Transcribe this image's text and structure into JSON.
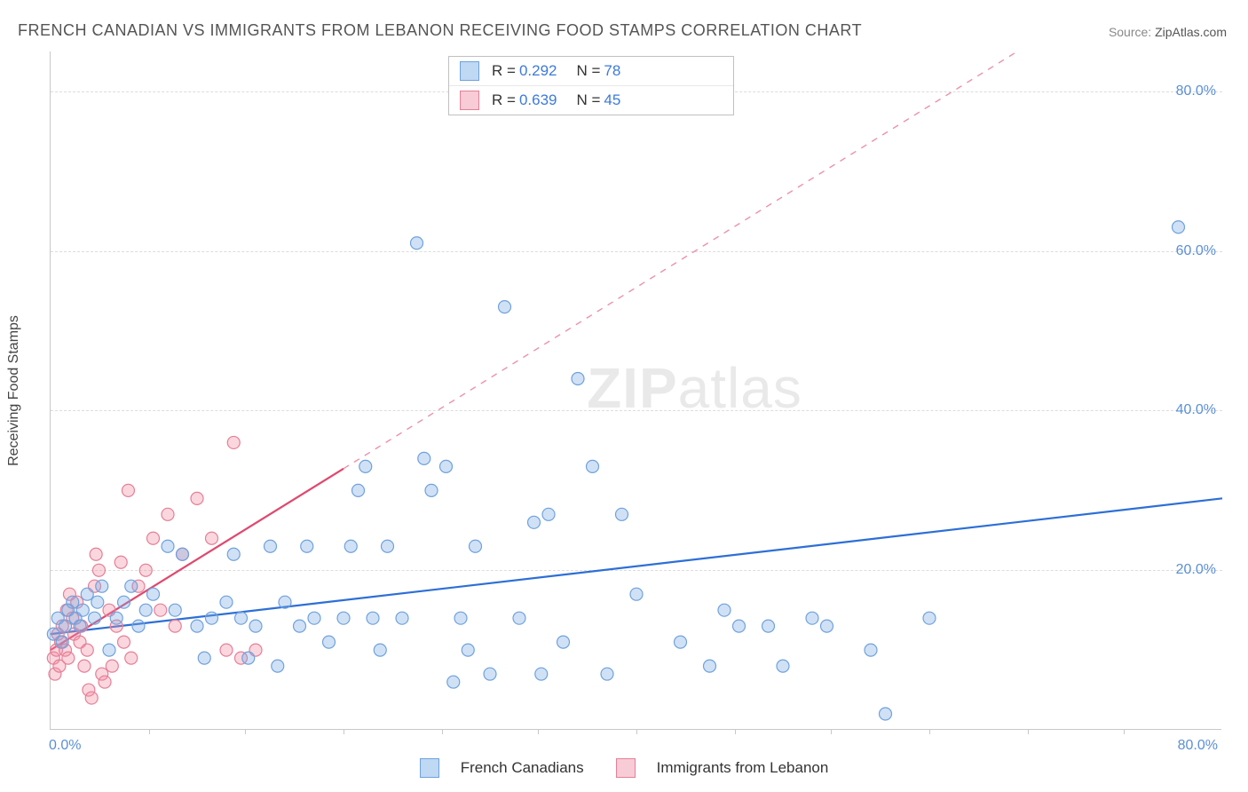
{
  "title": "FRENCH CANADIAN VS IMMIGRANTS FROM LEBANON RECEIVING FOOD STAMPS CORRELATION CHART",
  "source_label": "Source: ",
  "source_value": "ZipAtlas.com",
  "y_axis_title": "Receiving Food Stamps",
  "chart": {
    "type": "scatter",
    "xlim": [
      0,
      80
    ],
    "ylim": [
      0,
      85
    ],
    "x_tick_labels": {
      "origin": "0.0%",
      "max": "80.0%"
    },
    "y_ticks": [
      20,
      40,
      60,
      80
    ],
    "y_tick_labels": [
      "20.0%",
      "40.0%",
      "60.0%",
      "80.0%"
    ],
    "minor_x_ticks": [
      6.7,
      13.3,
      20,
      26.7,
      33.3,
      40,
      46.7,
      53.3,
      60,
      66.7,
      73.3
    ],
    "grid_color": "#dcdcdc",
    "background_color": "#ffffff",
    "marker_radius": 7,
    "marker_stroke_width": 1.2,
    "series": [
      {
        "name": "French Canadians",
        "fill": "rgba(120,170,230,0.35)",
        "stroke": "#6fa2dd",
        "R": "0.292",
        "N": "78",
        "trend": {
          "x1": 0,
          "y1": 12,
          "x2": 80,
          "y2": 29,
          "solid_end_x": 80,
          "color": "#2d6fd6",
          "width": 2.2
        },
        "points": [
          [
            0.2,
            12
          ],
          [
            0.5,
            14
          ],
          [
            0.8,
            11
          ],
          [
            1.0,
            13
          ],
          [
            1.2,
            15
          ],
          [
            1.5,
            16
          ],
          [
            1.7,
            14
          ],
          [
            2.0,
            13
          ],
          [
            2.2,
            15
          ],
          [
            2.5,
            17
          ],
          [
            3.0,
            14
          ],
          [
            3.2,
            16
          ],
          [
            3.5,
            18
          ],
          [
            4.0,
            10
          ],
          [
            4.5,
            14
          ],
          [
            5.0,
            16
          ],
          [
            5.5,
            18
          ],
          [
            6.0,
            13
          ],
          [
            6.5,
            15
          ],
          [
            7.0,
            17
          ],
          [
            8.0,
            23
          ],
          [
            8.5,
            15
          ],
          [
            9.0,
            22
          ],
          [
            10.0,
            13
          ],
          [
            10.5,
            9
          ],
          [
            11.0,
            14
          ],
          [
            12.0,
            16
          ],
          [
            12.5,
            22
          ],
          [
            13.0,
            14
          ],
          [
            13.5,
            9
          ],
          [
            14.0,
            13
          ],
          [
            15.0,
            23
          ],
          [
            15.5,
            8
          ],
          [
            16.0,
            16
          ],
          [
            17.0,
            13
          ],
          [
            17.5,
            23
          ],
          [
            18.0,
            14
          ],
          [
            19.0,
            11
          ],
          [
            20.0,
            14
          ],
          [
            20.5,
            23
          ],
          [
            21.0,
            30
          ],
          [
            21.5,
            33
          ],
          [
            22.0,
            14
          ],
          [
            22.5,
            10
          ],
          [
            23.0,
            23
          ],
          [
            24.0,
            14
          ],
          [
            25.0,
            61
          ],
          [
            25.5,
            34
          ],
          [
            26.0,
            30
          ],
          [
            27.0,
            33
          ],
          [
            27.5,
            6
          ],
          [
            28.0,
            14
          ],
          [
            28.5,
            10
          ],
          [
            29.0,
            23
          ],
          [
            30.0,
            7
          ],
          [
            31.0,
            53
          ],
          [
            32.0,
            14
          ],
          [
            33.0,
            26
          ],
          [
            33.5,
            7
          ],
          [
            34.0,
            27
          ],
          [
            35.0,
            11
          ],
          [
            36.0,
            44
          ],
          [
            37.0,
            33
          ],
          [
            38.0,
            7
          ],
          [
            39.0,
            27
          ],
          [
            40.0,
            17
          ],
          [
            43.0,
            11
          ],
          [
            45.0,
            8
          ],
          [
            46.0,
            15
          ],
          [
            47.0,
            13
          ],
          [
            49.0,
            13
          ],
          [
            50.0,
            8
          ],
          [
            52.0,
            14
          ],
          [
            53.0,
            13
          ],
          [
            56.0,
            10
          ],
          [
            57.0,
            2
          ],
          [
            60.0,
            14
          ],
          [
            77.0,
            63
          ]
        ]
      },
      {
        "name": "Immigrants from Lebanon",
        "fill": "rgba(240,140,160,0.35)",
        "stroke": "#e77f97",
        "R": "0.639",
        "N": "45",
        "trend": {
          "x1": 0,
          "y1": 10,
          "x2": 66,
          "y2": 85,
          "solid_end_x": 20,
          "color": "#e0486f",
          "width": 2.2
        },
        "points": [
          [
            0.2,
            9
          ],
          [
            0.3,
            7
          ],
          [
            0.4,
            10
          ],
          [
            0.5,
            12
          ],
          [
            0.6,
            8
          ],
          [
            0.7,
            11
          ],
          [
            0.8,
            13
          ],
          [
            1.0,
            10
          ],
          [
            1.1,
            15
          ],
          [
            1.2,
            9
          ],
          [
            1.3,
            17
          ],
          [
            1.5,
            14
          ],
          [
            1.6,
            12
          ],
          [
            1.8,
            16
          ],
          [
            2.0,
            11
          ],
          [
            2.1,
            13
          ],
          [
            2.3,
            8
          ],
          [
            2.5,
            10
          ],
          [
            2.6,
            5
          ],
          [
            2.8,
            4
          ],
          [
            3.0,
            18
          ],
          [
            3.1,
            22
          ],
          [
            3.3,
            20
          ],
          [
            3.5,
            7
          ],
          [
            3.7,
            6
          ],
          [
            4.0,
            15
          ],
          [
            4.2,
            8
          ],
          [
            4.5,
            13
          ],
          [
            4.8,
            21
          ],
          [
            5.0,
            11
          ],
          [
            5.3,
            30
          ],
          [
            5.5,
            9
          ],
          [
            6.0,
            18
          ],
          [
            6.5,
            20
          ],
          [
            7.0,
            24
          ],
          [
            7.5,
            15
          ],
          [
            8.0,
            27
          ],
          [
            8.5,
            13
          ],
          [
            9.0,
            22
          ],
          [
            10.0,
            29
          ],
          [
            11.0,
            24
          ],
          [
            12.0,
            10
          ],
          [
            12.5,
            36
          ],
          [
            13.0,
            9
          ],
          [
            14.0,
            10
          ]
        ]
      }
    ],
    "legend_swatch": {
      "blue_fill": "#bfd8f3",
      "blue_stroke": "#6fa2dd",
      "pink_fill": "#f7ccd6",
      "pink_stroke": "#e77f97"
    },
    "watermark": {
      "part1": "ZIP",
      "part2": "atlas"
    }
  },
  "bottom_legend": {
    "series1": "French Canadians",
    "series2": "Immigrants from Lebanon"
  }
}
